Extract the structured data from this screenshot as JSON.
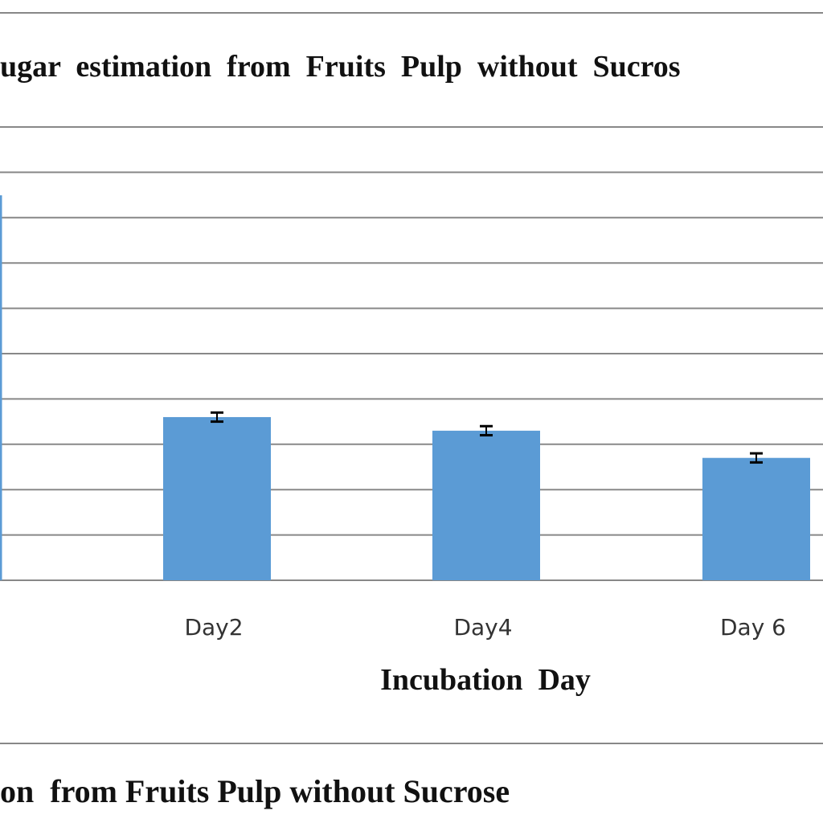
{
  "chart_data": {
    "type": "bar",
    "title": "ugar  estimation  from  Fruits  Pulp  without  Sucros",
    "xlabel": "Incubation  Day",
    "ylabel": "",
    "categories": [
      "Day2",
      "Day4",
      "Day 6"
    ],
    "series": [
      {
        "values": [
          3.6,
          3.3,
          2.7
        ],
        "errors": [
          0.1,
          0.1,
          0.1
        ]
      }
    ],
    "ylim": [
      0,
      10
    ],
    "grid": true,
    "legend": "none",
    "colors": {
      "bar": "#5b9bd5",
      "grid": "#888888",
      "error": "#000000",
      "axis": "#5b9bd5"
    }
  },
  "caption": "on  from Fruits Pulp without Sucrose"
}
